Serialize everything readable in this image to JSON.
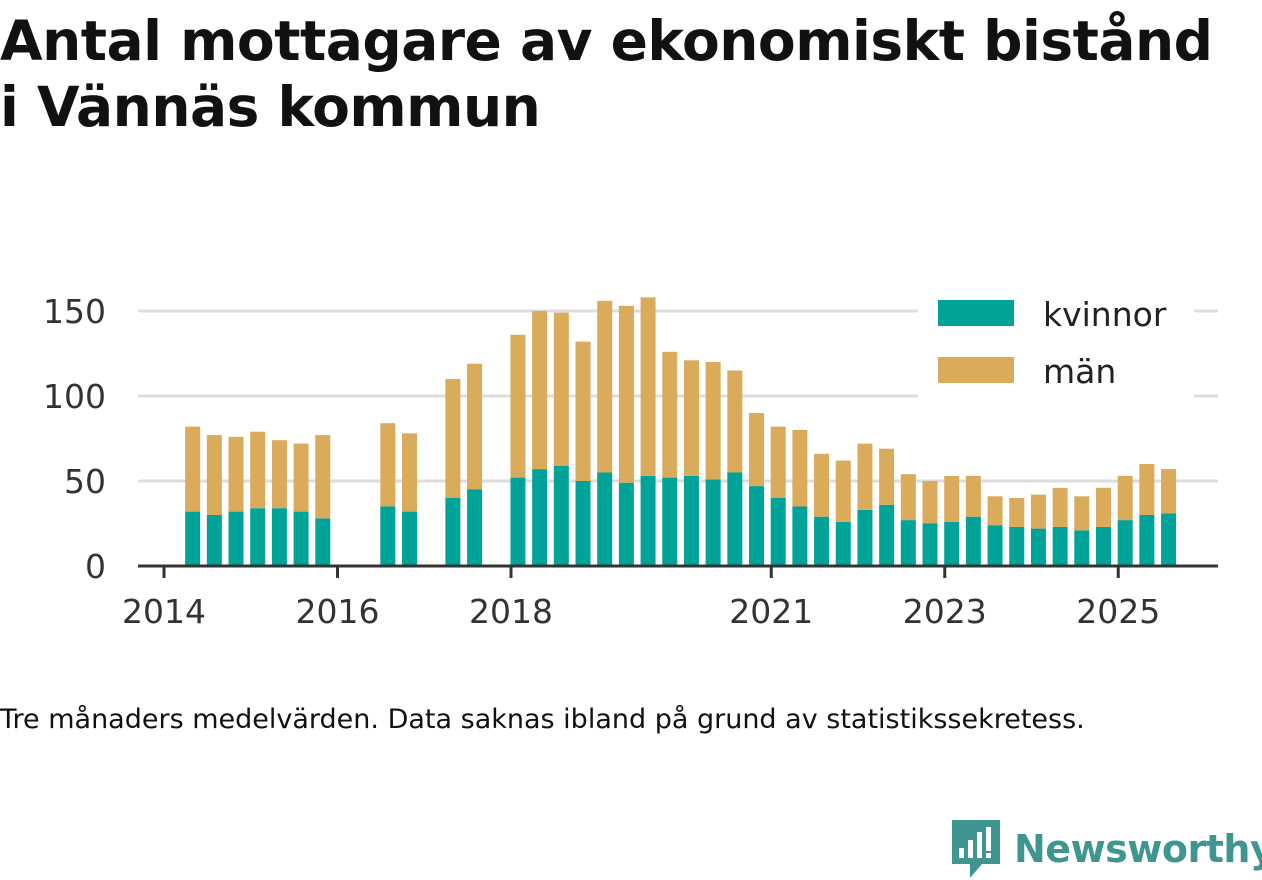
{
  "title_lines": [
    "Antal mottagare av ekonomiskt bistånd",
    "i Vännäs kommun"
  ],
  "note": "Tre månaders medelvärden. Data saknas ibland på grund av statistikssekretess.",
  "brand": {
    "name": "Newsworthy",
    "icon": "newsworthy-logo-icon",
    "color": "#3f958f"
  },
  "chart_data": {
    "type": "bar",
    "stacked": true,
    "title": "Antal mottagare av ekonomiskt bistånd i Vännäs kommun",
    "xlabel": "",
    "ylabel": "",
    "ylim": [
      0,
      160
    ],
    "y_ticks": [
      0,
      50,
      100,
      150
    ],
    "x_ticks": [
      {
        "label": "2014",
        "value": 2014.0
      },
      {
        "label": "2016",
        "value": 2016.0
      },
      {
        "label": "2018",
        "value": 2018.0
      },
      {
        "label": "2021",
        "value": 2021.0
      },
      {
        "label": "2023",
        "value": 2023.0
      },
      {
        "label": "2025",
        "value": 2025.0
      }
    ],
    "grid": true,
    "legend_position": "top-right",
    "series": [
      {
        "name": "kvinnor",
        "color": "#00a398"
      },
      {
        "name": "män",
        "color": "#d9ab5a"
      }
    ],
    "x": [
      2014.33,
      2014.58,
      2014.83,
      2015.08,
      2015.33,
      2015.58,
      2015.83,
      2016.58,
      2016.83,
      2017.33,
      2017.58,
      2018.08,
      2018.33,
      2018.58,
      2018.83,
      2019.08,
      2019.33,
      2019.58,
      2019.83,
      2020.08,
      2020.33,
      2020.58,
      2020.83,
      2021.08,
      2021.33,
      2021.58,
      2021.83,
      2022.08,
      2022.33,
      2022.58,
      2022.83,
      2023.08,
      2023.33,
      2023.58,
      2023.83,
      2024.08,
      2024.33,
      2024.58,
      2024.83,
      2025.08,
      2025.33,
      2025.58
    ],
    "values_kvinnor": [
      32,
      30,
      32,
      34,
      34,
      32,
      28,
      35,
      32,
      40,
      45,
      52,
      57,
      59,
      50,
      55,
      49,
      53,
      52,
      53,
      51,
      55,
      47,
      40,
      35,
      29,
      26,
      33,
      36,
      27,
      25,
      26,
      29,
      24,
      23,
      22,
      23,
      21,
      23,
      27,
      30,
      31
    ],
    "values_man": [
      50,
      47,
      44,
      45,
      40,
      40,
      49,
      49,
      46,
      70,
      74,
      84,
      93,
      90,
      82,
      101,
      104,
      105,
      74,
      68,
      69,
      60,
      43,
      42,
      45,
      37,
      36,
      39,
      33,
      27,
      25,
      27,
      24,
      17,
      17,
      20,
      23,
      20,
      23,
      26,
      30,
      26
    ]
  }
}
